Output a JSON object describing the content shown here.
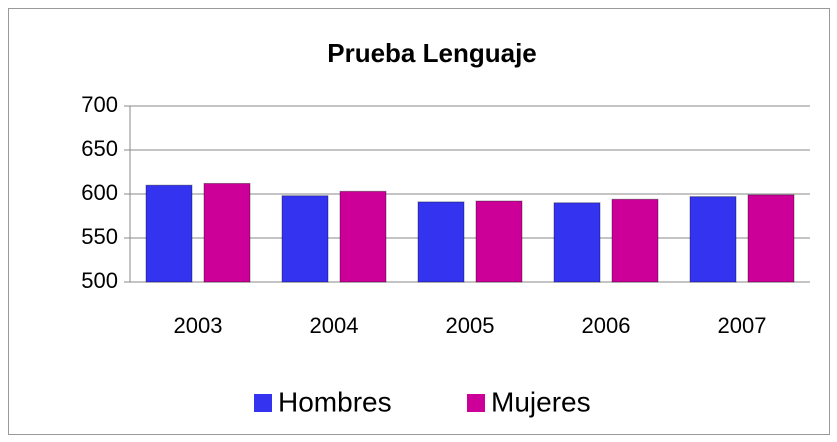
{
  "chart_data": {
    "type": "bar",
    "title": "Prueba Lenguaje",
    "categories": [
      "2003",
      "2004",
      "2005",
      "2006",
      "2007"
    ],
    "series": [
      {
        "name": "Hombres",
        "color": "#3333f0",
        "values": [
          610,
          598,
          591,
          590,
          597
        ]
      },
      {
        "name": "Mujeres",
        "color": "#cc0099",
        "values": [
          612,
          603,
          592,
          594,
          599
        ]
      }
    ],
    "ylim": [
      500,
      700
    ],
    "yticks": [
      500,
      550,
      600,
      650,
      700
    ],
    "grid": true,
    "legend": "bottom"
  }
}
